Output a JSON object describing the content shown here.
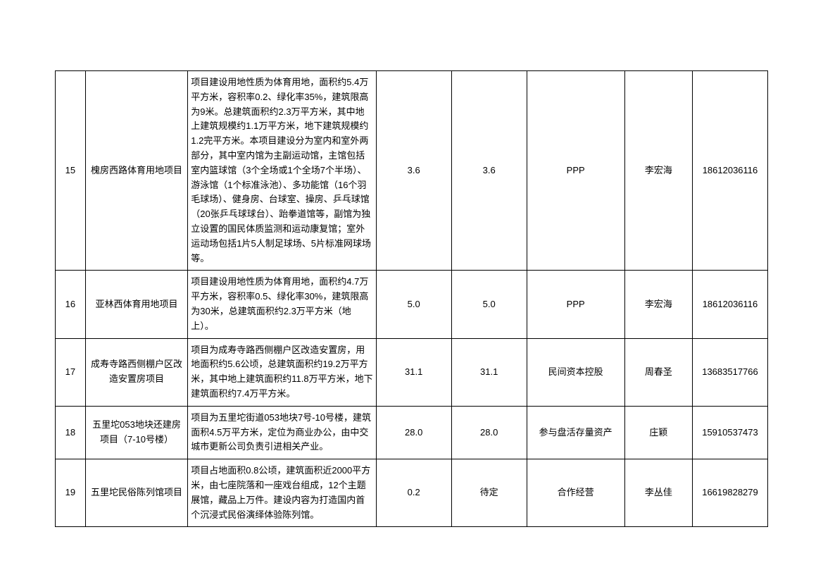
{
  "table": {
    "rows": [
      {
        "num": "15",
        "name": "槐房西路体育用地项目",
        "desc": "项目建设用地性质为体育用地，面积约5.4万平方米，容积率0.2、绿化率35%，建筑限高为9米。总建筑面积约2.3万平方米，其中地上建筑规模约1.1万平方米，地下建筑规模约1.2完平方米。本项目建设分为室内和室外两部分，其中室内馆为主副运动馆，主馆包括室内篮球馆（3个全场或1个全场7个半场）、游泳馆（1个标准泳池）、多功能馆（16个羽毛球场）、健身房、台球室、操房、乒乓球馆（20张乒乓球球台）、跆拳道馆等，副馆为独立设置的国民体质监测和运动康复馆；室外运动场包括1片5人制足球场、5片标准网球场等。",
        "val1": "3.6",
        "val2": "3.6",
        "coop": "PPP",
        "contact": "李宏海",
        "phone": "18612036116"
      },
      {
        "num": "16",
        "name": "亚林西体育用地项目",
        "desc": "项目建设用地性质为体育用地，面积约4.7万平方米，容积率0.5、绿化率30%，建筑限高为30米，总建筑面积约2.3万平方米（地上）。",
        "val1": "5.0",
        "val2": "5.0",
        "coop": "PPP",
        "contact": "李宏海",
        "phone": "18612036116"
      },
      {
        "num": "17",
        "name": "成寿寺路西侧棚户区改造安置房项目",
        "desc": "项目为成寿寺路西侧棚户区改造安置房，用地面积约5.6公顷，总建筑面积约19.2万平方米，其中地上建筑面积约11.8万平方米，地下建筑面积约7.4万平方米。",
        "val1": "31.1",
        "val2": "31.1",
        "coop": "民间资本控股",
        "contact": "周春圣",
        "phone": "13683517766"
      },
      {
        "num": "18",
        "name": "五里坨053地块还建房项目（7-10号楼）",
        "desc": "项目为五里坨街道053地块7号-10号楼，建筑面积4.5万平方米，定位为商业办公，由中交城市更新公司负责引进相关产业。",
        "val1": "28.0",
        "val2": "28.0",
        "coop": "参与盘活存量资产",
        "contact": "庄颖",
        "phone": "15910537473"
      },
      {
        "num": "19",
        "name": "五里坨民俗陈列馆项目",
        "desc": "项目占地面积0.8公顷，建筑面积近2000平方米，由七座院落和一座戏台组成，12个主题展馆，藏品上万件。建设内容为打造国内首个沉浸式民俗演绎体验陈列馆。",
        "val1": "0.2",
        "val2": "待定",
        "coop": "合作经营",
        "contact": "李丛佳",
        "phone": "16619828279"
      }
    ]
  }
}
